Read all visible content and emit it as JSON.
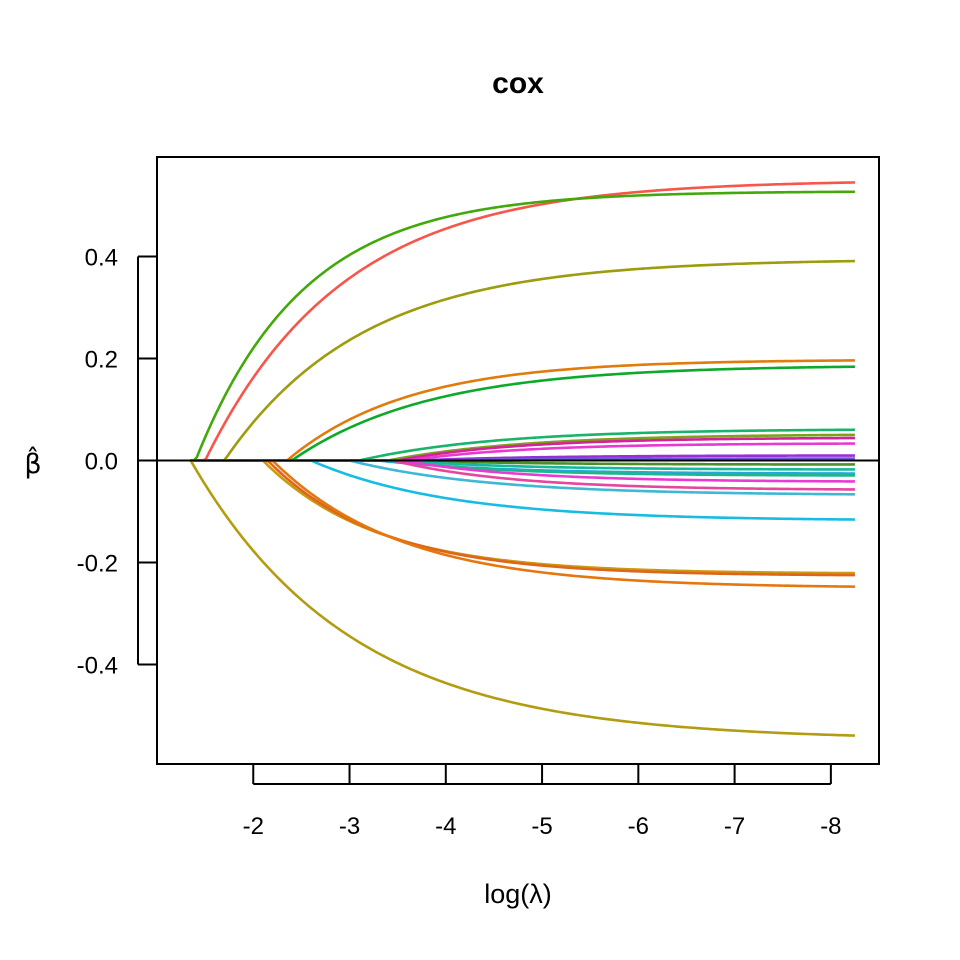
{
  "chart_data": {
    "type": "line",
    "title": "cox",
    "xlabel": "log(λ)",
    "ylabel": "β̂",
    "xlim": [
      -1.0,
      -8.5
    ],
    "ylim": [
      -0.595,
      0.595
    ],
    "x_ticks": [
      -2,
      -3,
      -4,
      -5,
      -6,
      -7,
      -8
    ],
    "x_tick_labels": [
      "-2",
      "-3",
      "-4",
      "-5",
      "-6",
      "-7",
      "-8"
    ],
    "y_ticks": [
      0.4,
      0.2,
      0.0,
      -0.2,
      -0.4
    ],
    "y_tick_labels": [
      "0.4",
      "0.2",
      "0.0",
      "-0.2",
      "-0.4"
    ],
    "zero_line": true,
    "grid": false,
    "x_end": -8.25,
    "paths": [
      {
        "color": "#F8564A",
        "entry": -1.5,
        "final": 0.55,
        "rate": 0.7
      },
      {
        "color": "#43A80A",
        "entry": -1.4,
        "final": 0.528,
        "rate": 0.9
      },
      {
        "color": "#9C9C0E",
        "entry": -1.7,
        "final": 0.395,
        "rate": 0.7
      },
      {
        "color": "#E07B0C",
        "entry": -2.35,
        "final": 0.198,
        "rate": 0.8
      },
      {
        "color": "#0BAA2A",
        "entry": -2.4,
        "final": 0.187,
        "rate": 0.7
      },
      {
        "color": "#1AB36A",
        "entry": -3.1,
        "final": 0.062,
        "rate": 0.7
      },
      {
        "color": "#7AA31A",
        "entry": -3.4,
        "final": 0.052,
        "rate": 0.7
      },
      {
        "color": "#D6209E",
        "entry": -3.5,
        "final": 0.045,
        "rate": 0.8
      },
      {
        "color": "#E73AD0",
        "entry": -3.6,
        "final": 0.034,
        "rate": 0.8
      },
      {
        "color": "#9A2ED6",
        "entry": -3.7,
        "final": 0.01,
        "rate": 0.8
      },
      {
        "color": "#6E5BD8",
        "entry": -3.8,
        "final": 0.004,
        "rate": 0.8
      },
      {
        "color": "#4C8E2A",
        "entry": -3.6,
        "final": -0.008,
        "rate": 0.8
      },
      {
        "color": "#13B89E",
        "entry": -3.5,
        "final": -0.018,
        "rate": 0.8
      },
      {
        "color": "#28A6D9",
        "entry": -3.3,
        "final": -0.026,
        "rate": 0.8
      },
      {
        "color": "#1AB88A",
        "entry": -3.4,
        "final": -0.03,
        "rate": 0.8
      },
      {
        "color": "#E83BD4",
        "entry": -3.55,
        "final": -0.042,
        "rate": 0.8
      },
      {
        "color": "#E5479E",
        "entry": -3.45,
        "final": -0.058,
        "rate": 0.8
      },
      {
        "color": "#3EB8D4",
        "entry": -3.0,
        "final": -0.068,
        "rate": 0.7
      },
      {
        "color": "#16BDE1",
        "entry": -2.6,
        "final": -0.118,
        "rate": 0.7
      },
      {
        "color": "#C89A0E",
        "entry": -2.1,
        "final": -0.222,
        "rate": 0.85
      },
      {
        "color": "#E0651C",
        "entry": -2.15,
        "final": -0.226,
        "rate": 0.85
      },
      {
        "color": "#E6760E",
        "entry": -2.2,
        "final": -0.25,
        "rate": 0.75
      },
      {
        "color": "#B29C12",
        "entry": -1.35,
        "final": -0.548,
        "rate": 0.6
      }
    ]
  }
}
